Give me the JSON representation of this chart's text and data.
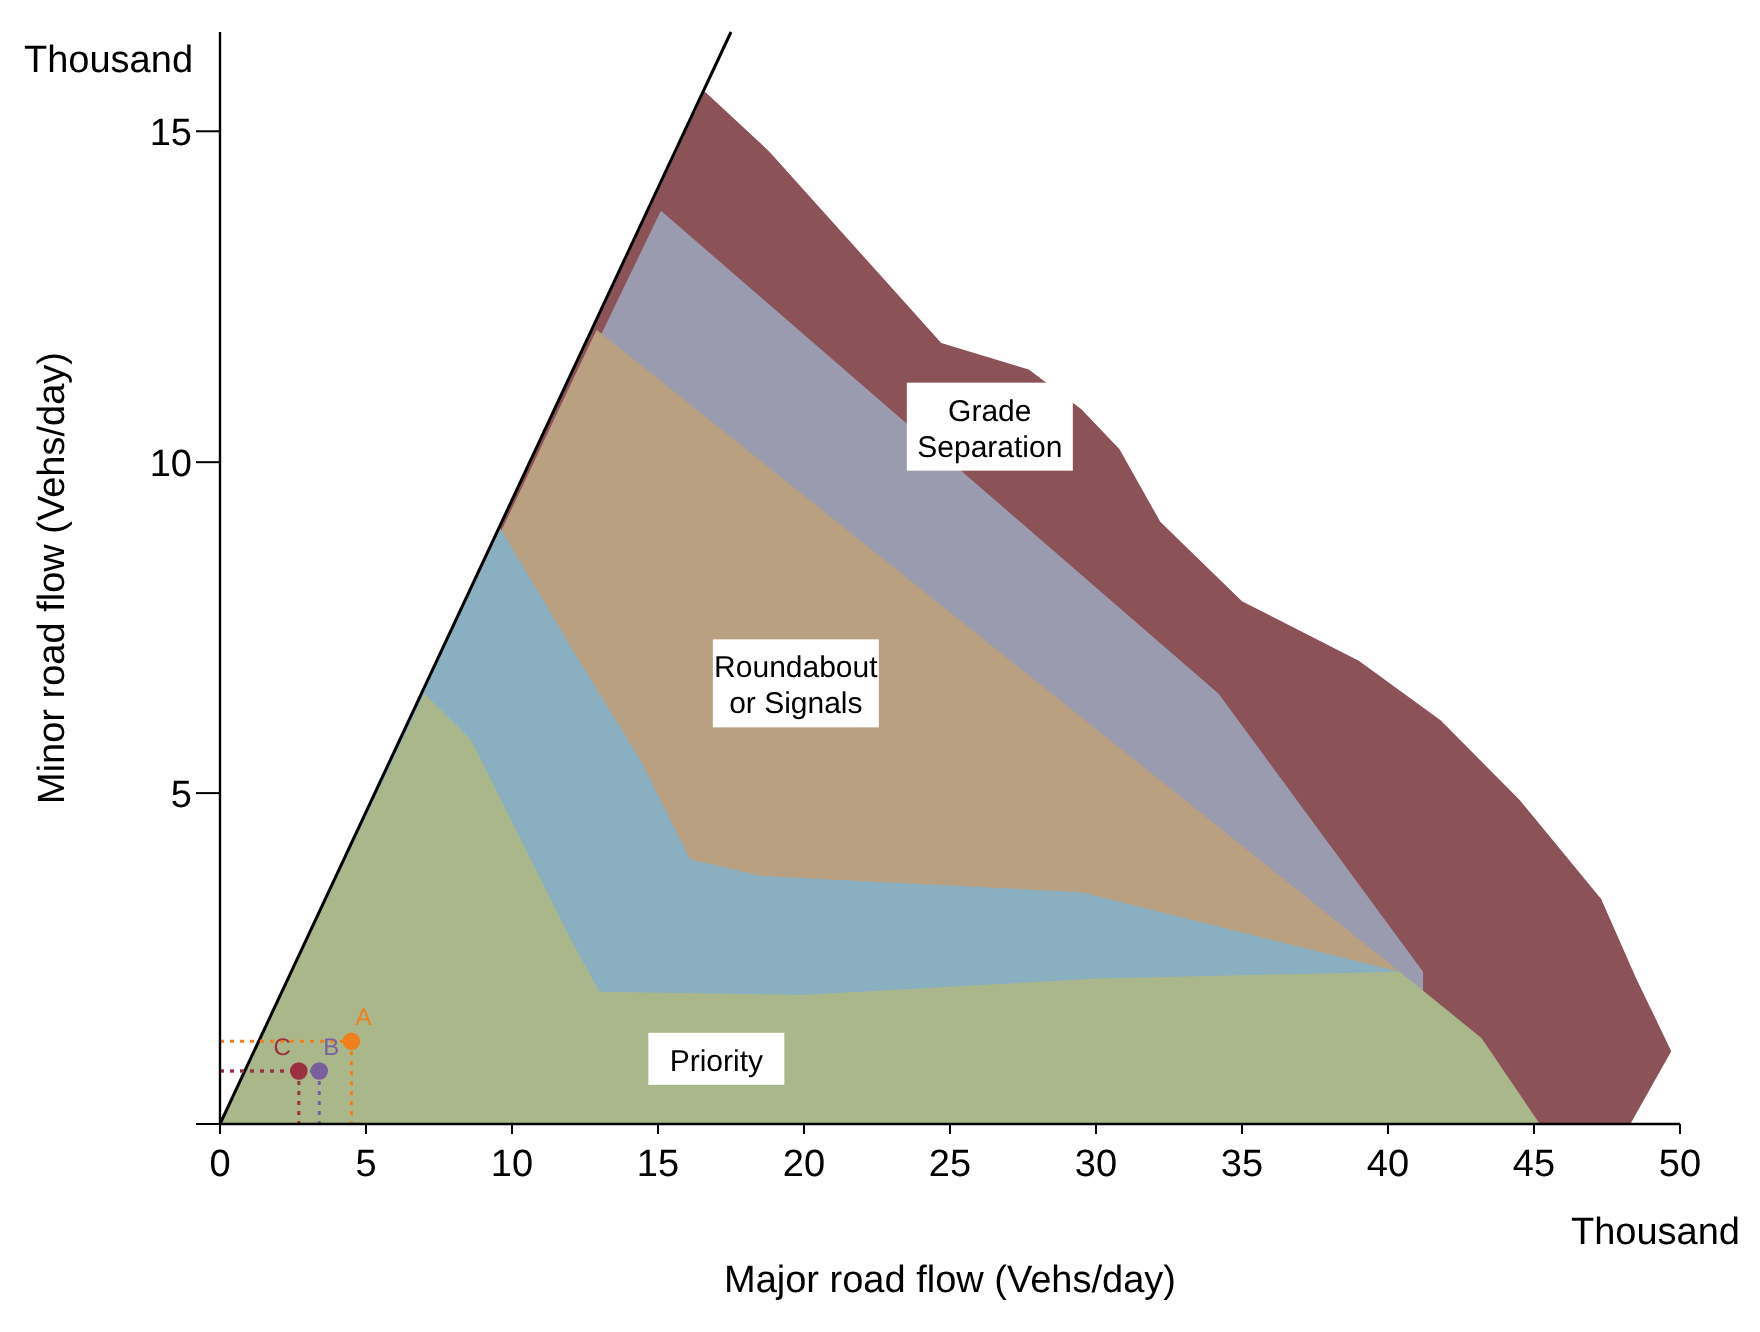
{
  "chart_data": {
    "type": "area",
    "xlabel": "Major road flow (Vehs/day)",
    "ylabel": "Minor road flow (Vehs/day)",
    "annotations": [
      "Thousand",
      "Thousand"
    ],
    "xlim": [
      0,
      50
    ],
    "ylim": [
      0,
      16.5
    ],
    "xticks": [
      0,
      5,
      10,
      15,
      20,
      25,
      30,
      35,
      40,
      45,
      50
    ],
    "yticks": [
      {
        "value": 0,
        "label": null
      },
      5,
      10,
      15
    ],
    "grid": false,
    "series": [
      {
        "name": "Grade Separation",
        "color": "#8b5257",
        "x": [
          0,
          16.6,
          18.8,
          24.7,
          27.7,
          29.5,
          30.8,
          32.2,
          35,
          39,
          41.8,
          44.5,
          47.3,
          48.5,
          49.7,
          48.3
        ],
        "values": [
          0,
          15.6,
          14.7,
          11.8,
          11.4,
          10.8,
          10.2,
          9.1,
          7.9,
          7.0,
          6.1,
          4.9,
          3.4,
          2.2,
          1.1,
          0
        ]
      },
      {
        "color": "#9b9bb0",
        "x": [
          0,
          15.1,
          34.2,
          41.2
        ],
        "values": [
          0,
          13.8,
          6.5,
          2.3
        ]
      },
      {
        "name": "Roundabout or Signals",
        "color": "#b9a080",
        "x": [
          0,
          12.9,
          40.4
        ],
        "values": [
          0,
          12.0,
          2.3
        ]
      },
      {
        "color": "#8aafc0",
        "x": [
          0,
          9.6,
          12.3,
          14.4,
          16.1,
          18.5,
          29.5,
          40.4
        ],
        "values": [
          0,
          9.0,
          7.0,
          5.5,
          4.0,
          3.75,
          3.5,
          2.3
        ]
      },
      {
        "name": "Priority",
        "color": "#aab78b",
        "x": [
          0,
          7.0,
          8.6,
          10.3,
          12,
          13,
          19.9,
          30.1,
          40.4,
          43.2,
          45.2
        ],
        "values": [
          0,
          6.5,
          5.8,
          4.3,
          2.8,
          2.0,
          1.95,
          2.2,
          2.3,
          1.3,
          0
        ]
      },
      {
        "type": "line",
        "color": "#000000",
        "x": [
          0,
          17.5
        ],
        "values": [
          0,
          16.5
        ]
      },
      {
        "type": "scatter",
        "name": "A",
        "color": "#f07f1e",
        "marker": "circle",
        "line_style": "dotted",
        "x": [
          4.5
        ],
        "values": [
          1.25
        ]
      },
      {
        "type": "scatter",
        "name": "B",
        "color": "#7a5f9e",
        "marker": "circle",
        "line_style": "dotted",
        "x": [
          3.4
        ],
        "values": [
          0.8
        ]
      },
      {
        "type": "scatter",
        "name": "C",
        "color": "#9a3040",
        "marker": "circle",
        "line_style": "dotted",
        "x": [
          2.7
        ],
        "values": [
          0.8
        ]
      }
    ]
  }
}
